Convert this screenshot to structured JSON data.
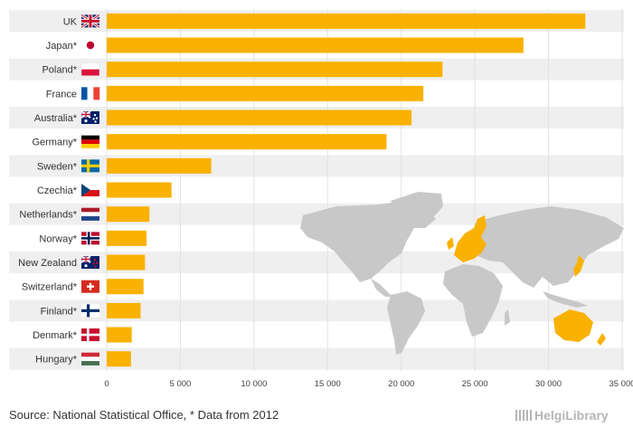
{
  "chart_data": {
    "type": "bar",
    "orientation": "horizontal",
    "title": "",
    "xlabel": "",
    "ylabel": "",
    "xlim": [
      0,
      35000
    ],
    "grid": true,
    "categories": [
      {
        "label": "UK",
        "flag": "uk"
      },
      {
        "label": "Japan*",
        "flag": "japan"
      },
      {
        "label": "Poland*",
        "flag": "poland"
      },
      {
        "label": "France",
        "flag": "france"
      },
      {
        "label": "Australia*",
        "flag": "australia"
      },
      {
        "label": "Germany*",
        "flag": "germany"
      },
      {
        "label": "Sweden*",
        "flag": "sweden"
      },
      {
        "label": "Czechia*",
        "flag": "czechia"
      },
      {
        "label": "Netherlands*",
        "flag": "netherlands"
      },
      {
        "label": "Norway*",
        "flag": "norway"
      },
      {
        "label": "New Zealand",
        "flag": "new-zealand"
      },
      {
        "label": "Switzerland*",
        "flag": "switzerland"
      },
      {
        "label": "Finland*",
        "flag": "finland"
      },
      {
        "label": "Denmark*",
        "flag": "denmark"
      },
      {
        "label": "Hungary*",
        "flag": "hungary"
      }
    ],
    "values": [
      32500,
      28300,
      22800,
      21500,
      20700,
      19000,
      7100,
      4400,
      2900,
      2700,
      2600,
      2500,
      2300,
      1700,
      1650
    ],
    "ticks": [
      {
        "value": 0,
        "label": "0"
      },
      {
        "value": 5000,
        "label": "5 000"
      },
      {
        "value": 10000,
        "label": "10 000"
      },
      {
        "value": 15000,
        "label": "15 000"
      },
      {
        "value": 20000,
        "label": "20 000"
      },
      {
        "value": 25000,
        "label": "25 000"
      },
      {
        "value": 30000,
        "label": "30 000"
      },
      {
        "value": 35000,
        "label": "35 000"
      }
    ]
  },
  "colors": {
    "bar": "#f9b102",
    "row_band": "#efefef",
    "map_land": "#c8c8c8",
    "map_highlight": "#f9b102"
  },
  "footer": {
    "source": "Source: National Statistical Office, * Data from 2012",
    "logo": "HelgiLibrary"
  }
}
